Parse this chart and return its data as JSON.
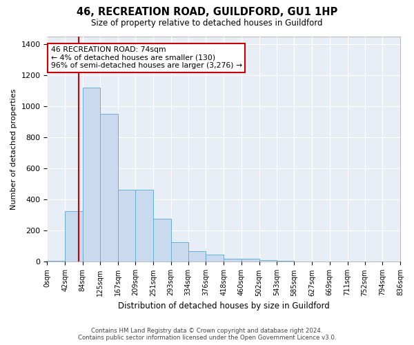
{
  "title": "46, RECREATION ROAD, GUILDFORD, GU1 1HP",
  "subtitle": "Size of property relative to detached houses in Guildford",
  "xlabel": "Distribution of detached houses by size in Guildford",
  "ylabel": "Number of detached properties",
  "footer_line1": "Contains HM Land Registry data © Crown copyright and database right 2024.",
  "footer_line2": "Contains public sector information licensed under the Open Government Licence v3.0.",
  "annotation_line1": "46 RECREATION ROAD: 74sqm",
  "annotation_line2": "← 4% of detached houses are smaller (130)",
  "annotation_line3": "96% of semi-detached houses are larger (3,276) →",
  "bar_color": "#c9d9ee",
  "bar_edge_color": "#6baed6",
  "marker_line_color": "#cc0000",
  "marker_x": 74,
  "bin_edges": [
    0,
    42,
    84,
    125,
    167,
    209,
    251,
    293,
    334,
    376,
    418,
    460,
    502,
    543,
    585,
    627,
    669,
    711,
    752,
    794,
    836
  ],
  "bar_heights": [
    5,
    325,
    1120,
    950,
    465,
    465,
    275,
    125,
    70,
    45,
    20,
    18,
    10,
    8,
    2,
    1,
    1,
    1,
    1,
    1
  ],
  "ylim": [
    0,
    1450
  ],
  "xlim": [
    0,
    836
  ],
  "yticks": [
    0,
    200,
    400,
    600,
    800,
    1000,
    1200,
    1400
  ]
}
